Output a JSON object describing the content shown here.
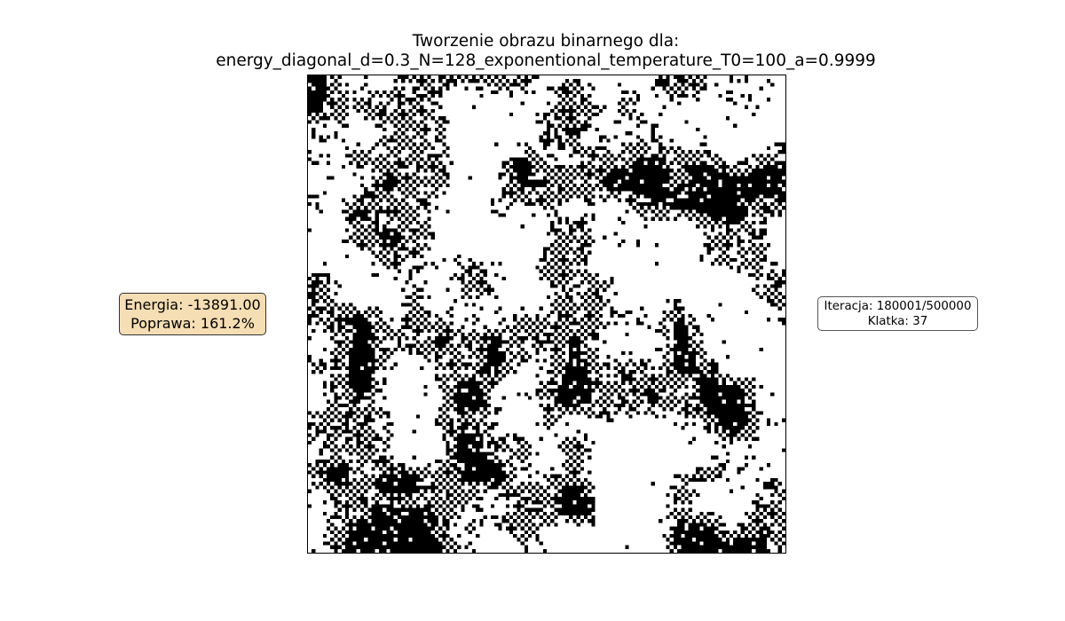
{
  "figure": {
    "title_line1": "Tworzenie obrazu binarnego dla:",
    "title_line2": "energy_diagonal_d=0.3_N=128_exponentional_temperature_T0=100_a=0.9999"
  },
  "energy_panel": {
    "energy_text": "Energia: -13891.00",
    "improvement_text": "Poprawa: 161.2%"
  },
  "iteration_panel": {
    "iteration_text": "Iteracja: 180001/500000",
    "frame_text": "Klatka: 37"
  },
  "image_grid": {
    "rows": 128,
    "cols": 128,
    "colors": {
      "on": "#000000",
      "off": "#ffffff"
    }
  }
}
